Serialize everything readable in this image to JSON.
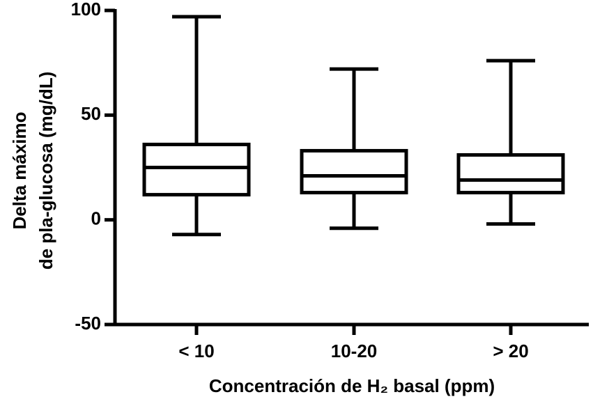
{
  "chart_data": {
    "type": "box",
    "ylabel": [
      "Delta máximo",
      "de pla-glucosa (mg/dL)"
    ],
    "xlabel": "Concentración de H₂ basal (ppm)",
    "categories": [
      "< 10",
      "10-20",
      "> 20"
    ],
    "boxes": [
      {
        "min": -7,
        "q1": 12,
        "median": 25,
        "q3": 36,
        "max": 97
      },
      {
        "min": -4,
        "q1": 13,
        "median": 21,
        "q3": 33,
        "max": 72
      },
      {
        "min": -2,
        "q1": 13,
        "median": 19,
        "q3": 31,
        "max": 76
      }
    ],
    "color": "#000000",
    "ylim": [
      -50,
      100
    ],
    "yticks": [
      -50,
      0,
      50,
      100
    ]
  }
}
